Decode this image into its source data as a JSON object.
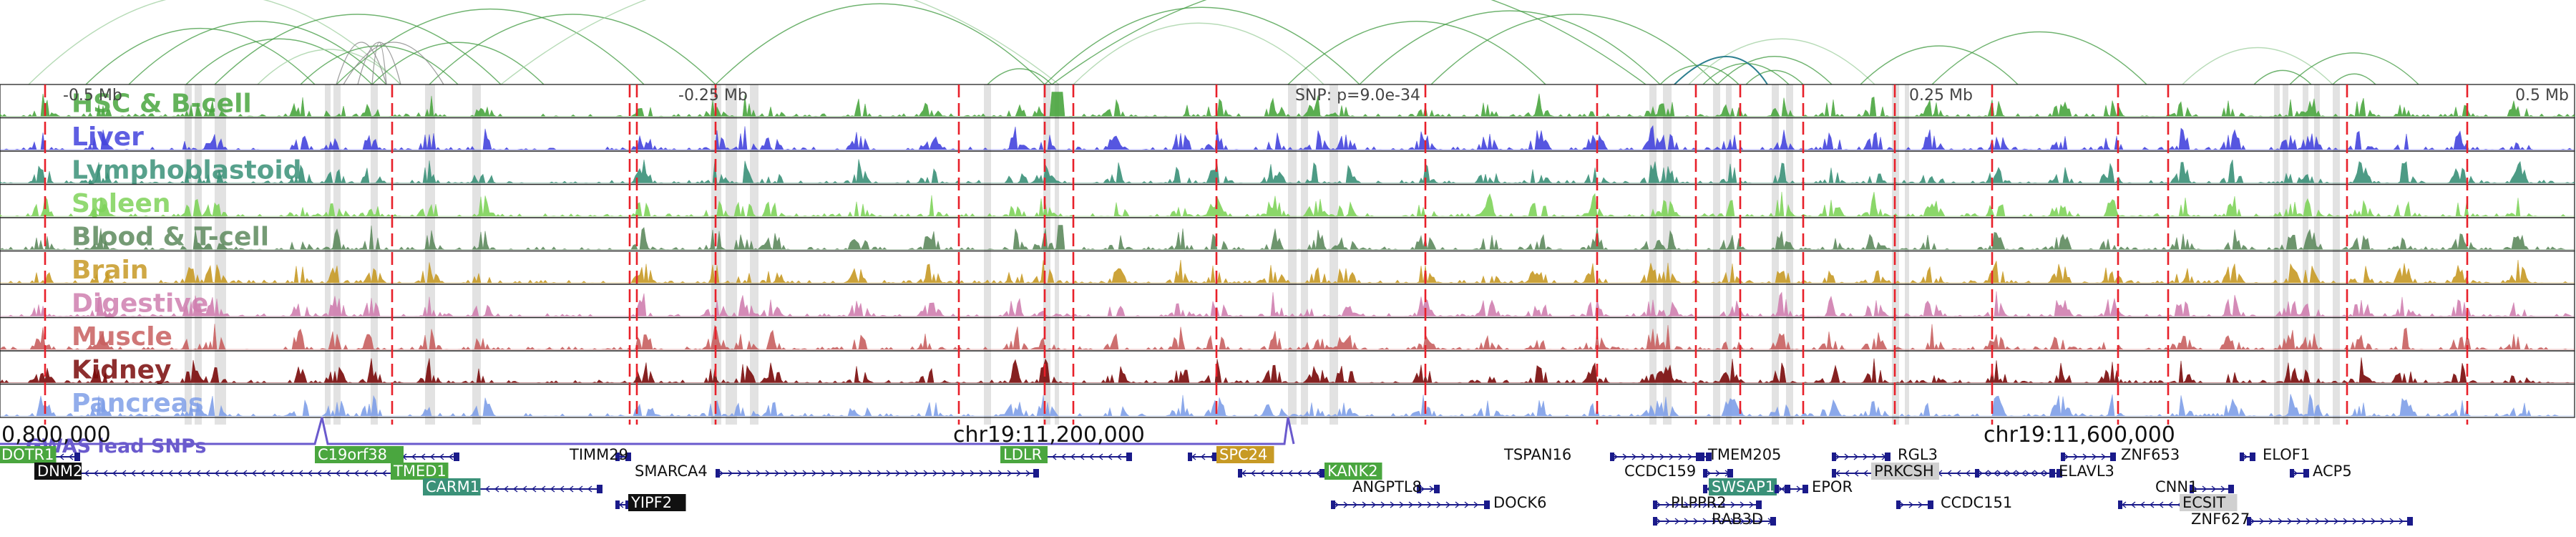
{
  "viewer": {
    "snp_label": "SNP: p=9.0e-34",
    "scale_labels": [
      {
        "text": "-0.5 Mb",
        "pos": -0.5
      },
      {
        "text": "-0.25 Mb",
        "pos": -0.25
      },
      {
        "text": "0.25 Mb",
        "pos": 0.25
      },
      {
        "text": "0.5 Mb",
        "pos": 0.5
      }
    ],
    "gwas_label": "GWAS lead SNPs",
    "coordinate_labels": [
      {
        "text": "0,800,000",
        "kb": 800
      },
      {
        "text": "chr19:11,200,000",
        "kb": 11200
      },
      {
        "text": "chr19:11,600,000",
        "kb": 11600
      }
    ]
  },
  "tracks": [
    {
      "name": "HSC & B-cell",
      "color": "#4aa63f"
    },
    {
      "name": "Liver",
      "color": "#4444dd"
    },
    {
      "name": "Lymphoblastoid",
      "color": "#3a9178"
    },
    {
      "name": "Spleen",
      "color": "#7fd35a"
    },
    {
      "name": "Blood & T-cell",
      "color": "#5e8a5e"
    },
    {
      "name": "Brain",
      "color": "#c79a25"
    },
    {
      "name": "Digestive",
      "color": "#d07fb0"
    },
    {
      "name": "Muscle",
      "color": "#c86060"
    },
    {
      "name": "Kidney",
      "color": "#7a0a0a"
    },
    {
      "name": "Pancreas",
      "color": "#7f9fe8"
    }
  ],
  "genes": [
    {
      "name": "DOTR1",
      "style": "green"
    },
    {
      "name": "DNM2",
      "style": "black"
    },
    {
      "name": "C19orf38",
      "style": "green"
    },
    {
      "name": "TMED1",
      "style": "green"
    },
    {
      "name": "CARM1",
      "style": "teal"
    },
    {
      "name": "TIMM29",
      "style": "plain"
    },
    {
      "name": "SMARCA4",
      "style": "plain"
    },
    {
      "name": "YIPF2",
      "style": "black"
    },
    {
      "name": "LDLR",
      "style": "green"
    },
    {
      "name": "SPC24",
      "style": "orange"
    },
    {
      "name": "KANK2",
      "style": "green"
    },
    {
      "name": "ANGPTL8",
      "style": "plain"
    },
    {
      "name": "DOCK6",
      "style": "plain"
    },
    {
      "name": "TSPAN16",
      "style": "plain"
    },
    {
      "name": "TMEM205",
      "style": "plain"
    },
    {
      "name": "CCDC159",
      "style": "plain"
    },
    {
      "name": "SWSAP1",
      "style": "teal"
    },
    {
      "name": "EPOR",
      "style": "plain"
    },
    {
      "name": "PLPPR2",
      "style": "plain"
    },
    {
      "name": "RAB3D",
      "style": "plain"
    },
    {
      "name": "RGL3",
      "style": "plain"
    },
    {
      "name": "PRKCSH",
      "style": "gray"
    },
    {
      "name": "ELAVL3",
      "style": "plain"
    },
    {
      "name": "CCDC151",
      "style": "plain"
    },
    {
      "name": "ZNF653",
      "style": "plain"
    },
    {
      "name": "CNN1",
      "style": "plain"
    },
    {
      "name": "ECSIT",
      "style": "gray"
    },
    {
      "name": "ZNF627",
      "style": "plain"
    },
    {
      "name": "ELOF1",
      "style": "plain"
    },
    {
      "name": "ACP5",
      "style": "plain"
    }
  ],
  "colors": {
    "grid_red": "#e8202a",
    "arc": "#3f9a3f",
    "gwas": "#6a5acd",
    "gene_line": "#1a1a8a"
  }
}
